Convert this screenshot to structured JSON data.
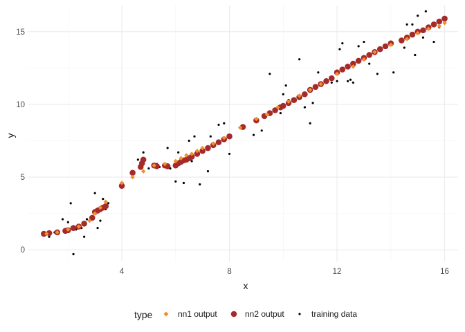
{
  "chart_data": {
    "type": "scatter",
    "title": "",
    "xlabel": "x",
    "ylabel": "y",
    "xlim": [
      0.5,
      16.5
    ],
    "ylim": [
      -0.8,
      16.8
    ],
    "x_ticks": [
      4,
      8,
      12,
      16
    ],
    "y_ticks": [
      0,
      5,
      10,
      15
    ],
    "grid": true,
    "legend": {
      "title": "type",
      "position": "bottom",
      "entries": [
        "nn1 output",
        "nn2 output",
        "training data"
      ]
    },
    "series": [
      {
        "name": "nn1 output",
        "marker": "diamond",
        "color": "#f28e2b",
        "points": [
          [
            1.2,
            1.1
          ],
          [
            1.6,
            1.2
          ],
          [
            2.0,
            1.4
          ],
          [
            2.4,
            1.6
          ],
          [
            2.8,
            2.0
          ],
          [
            3.0,
            2.5
          ],
          [
            3.2,
            2.9
          ],
          [
            3.4,
            3.3
          ],
          [
            4.0,
            4.6
          ],
          [
            4.4,
            5.0
          ],
          [
            4.8,
            5.4
          ],
          [
            5.2,
            5.8
          ],
          [
            5.6,
            5.9
          ],
          [
            6.0,
            6.1
          ],
          [
            6.2,
            6.3
          ],
          [
            6.4,
            6.5
          ],
          [
            6.6,
            6.6
          ],
          [
            6.8,
            6.8
          ],
          [
            7.0,
            7.0
          ],
          [
            7.4,
            7.3
          ],
          [
            7.8,
            7.7
          ],
          [
            8.4,
            8.4
          ],
          [
            9.0,
            9.0
          ],
          [
            9.4,
            9.3
          ],
          [
            9.8,
            9.8
          ],
          [
            10.2,
            10.2
          ],
          [
            10.6,
            10.6
          ],
          [
            11.0,
            11.0
          ],
          [
            11.4,
            11.4
          ],
          [
            12.0,
            12.1
          ],
          [
            12.6,
            12.6
          ],
          [
            13.0,
            13.1
          ],
          [
            13.4,
            13.6
          ],
          [
            14.0,
            14.1
          ],
          [
            14.6,
            14.5
          ],
          [
            15.0,
            14.9
          ],
          [
            15.4,
            15.2
          ],
          [
            15.8,
            15.4
          ],
          [
            16.0,
            15.6
          ]
        ]
      },
      {
        "name": "nn2 output",
        "marker": "circle",
        "color": "#a52a2a",
        "points": [
          [
            1.1,
            1.1
          ],
          [
            1.3,
            1.15
          ],
          [
            1.6,
            1.2
          ],
          [
            1.9,
            1.3
          ],
          [
            2.0,
            1.35
          ],
          [
            2.2,
            1.5
          ],
          [
            2.4,
            1.6
          ],
          [
            2.6,
            1.8
          ],
          [
            2.9,
            2.2
          ],
          [
            3.0,
            2.6
          ],
          [
            3.1,
            2.7
          ],
          [
            3.2,
            2.8
          ],
          [
            3.3,
            2.9
          ],
          [
            3.4,
            3.0
          ],
          [
            4.0,
            4.4
          ],
          [
            4.4,
            5.3
          ],
          [
            4.7,
            5.7
          ],
          [
            4.75,
            5.95
          ],
          [
            4.8,
            6.2
          ],
          [
            5.2,
            5.8
          ],
          [
            5.3,
            5.75
          ],
          [
            5.6,
            5.8
          ],
          [
            5.7,
            5.75
          ],
          [
            6.0,
            5.8
          ],
          [
            6.1,
            5.95
          ],
          [
            6.2,
            6.05
          ],
          [
            6.3,
            6.15
          ],
          [
            6.4,
            6.2
          ],
          [
            6.5,
            6.3
          ],
          [
            6.6,
            6.4
          ],
          [
            6.8,
            6.6
          ],
          [
            7.0,
            6.8
          ],
          [
            7.2,
            7.0
          ],
          [
            7.4,
            7.2
          ],
          [
            7.6,
            7.4
          ],
          [
            7.8,
            7.6
          ],
          [
            8.0,
            7.8
          ],
          [
            8.5,
            8.45
          ],
          [
            9.0,
            8.9
          ],
          [
            9.3,
            9.2
          ],
          [
            9.5,
            9.4
          ],
          [
            9.7,
            9.6
          ],
          [
            9.9,
            9.8
          ],
          [
            10.0,
            9.9
          ],
          [
            10.2,
            10.1
          ],
          [
            10.4,
            10.3
          ],
          [
            10.6,
            10.5
          ],
          [
            10.8,
            10.7
          ],
          [
            11.0,
            11.0
          ],
          [
            11.2,
            11.2
          ],
          [
            11.4,
            11.4
          ],
          [
            11.6,
            11.6
          ],
          [
            11.8,
            11.8
          ],
          [
            12.0,
            12.2
          ],
          [
            12.2,
            12.4
          ],
          [
            12.4,
            12.6
          ],
          [
            12.6,
            12.8
          ],
          [
            12.8,
            13.0
          ],
          [
            13.0,
            13.2
          ],
          [
            13.2,
            13.4
          ],
          [
            13.4,
            13.6
          ],
          [
            13.6,
            13.8
          ],
          [
            13.8,
            14.0
          ],
          [
            14.0,
            14.2
          ],
          [
            14.4,
            14.4
          ],
          [
            14.6,
            14.6
          ],
          [
            14.8,
            14.8
          ],
          [
            15.0,
            15.0
          ],
          [
            15.2,
            15.1
          ],
          [
            15.4,
            15.3
          ],
          [
            15.6,
            15.5
          ],
          [
            15.8,
            15.7
          ],
          [
            16.0,
            15.9
          ]
        ]
      },
      {
        "name": "training data",
        "marker": "dot",
        "color": "#000000",
        "points": [
          [
            1.3,
            0.9
          ],
          [
            1.5,
            1.2
          ],
          [
            1.8,
            2.1
          ],
          [
            2.0,
            1.9
          ],
          [
            2.1,
            3.2
          ],
          [
            2.3,
            1.4
          ],
          [
            2.5,
            1.5
          ],
          [
            2.6,
            0.9
          ],
          [
            2.7,
            2.1
          ],
          [
            2.2,
            -0.3
          ],
          [
            2.9,
            2.3
          ],
          [
            3.0,
            3.9
          ],
          [
            3.1,
            1.5
          ],
          [
            3.2,
            2.0
          ],
          [
            3.3,
            3.5
          ],
          [
            3.4,
            2.8
          ],
          [
            3.5,
            3.2
          ],
          [
            4.6,
            6.2
          ],
          [
            4.8,
            6.7
          ],
          [
            5.0,
            5.6
          ],
          [
            5.3,
            5.9
          ],
          [
            5.4,
            5.7
          ],
          [
            5.7,
            7.0
          ],
          [
            5.8,
            5.6
          ],
          [
            6.0,
            4.7
          ],
          [
            6.1,
            6.7
          ],
          [
            6.3,
            4.6
          ],
          [
            6.5,
            7.5
          ],
          [
            6.6,
            6.1
          ],
          [
            6.7,
            7.8
          ],
          [
            6.9,
            4.5
          ],
          [
            7.2,
            5.4
          ],
          [
            7.3,
            7.8
          ],
          [
            7.6,
            8.6
          ],
          [
            7.8,
            8.7
          ],
          [
            8.0,
            6.6
          ],
          [
            8.9,
            7.9
          ],
          [
            9.2,
            8.2
          ],
          [
            9.3,
            9.2
          ],
          [
            9.5,
            12.1
          ],
          [
            9.7,
            9.7
          ],
          [
            9.9,
            9.4
          ],
          [
            10.0,
            10.7
          ],
          [
            10.1,
            11.3
          ],
          [
            10.2,
            10.3
          ],
          [
            10.4,
            10.3
          ],
          [
            10.6,
            13.1
          ],
          [
            10.8,
            9.8
          ],
          [
            11.0,
            8.7
          ],
          [
            11.1,
            10.1
          ],
          [
            11.3,
            12.2
          ],
          [
            11.8,
            11.5
          ],
          [
            12.0,
            11.6
          ],
          [
            12.1,
            13.8
          ],
          [
            12.2,
            14.2
          ],
          [
            12.4,
            11.6
          ],
          [
            12.5,
            11.7
          ],
          [
            12.6,
            11.5
          ],
          [
            12.8,
            14.0
          ],
          [
            13.0,
            14.3
          ],
          [
            13.2,
            12.8
          ],
          [
            13.5,
            12.1
          ],
          [
            13.8,
            14.1
          ],
          [
            14.0,
            14.2
          ],
          [
            14.1,
            12.2
          ],
          [
            14.5,
            13.9
          ],
          [
            14.6,
            15.5
          ],
          [
            14.8,
            15.5
          ],
          [
            14.9,
            13.4
          ],
          [
            15.0,
            16.1
          ],
          [
            15.2,
            14.6
          ],
          [
            15.3,
            16.4
          ],
          [
            15.6,
            14.3
          ],
          [
            15.8,
            15.3
          ]
        ]
      }
    ]
  }
}
